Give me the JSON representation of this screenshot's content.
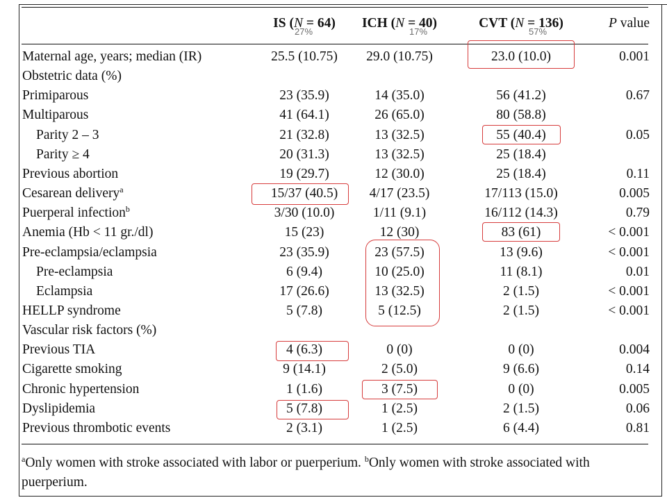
{
  "headers": {
    "col_is": {
      "name": "IS (",
      "n_label": "N",
      "n_value": " = 64)"
    },
    "col_ich": {
      "name": "ICH (",
      "n_label": "N",
      "n_value": " = 40)"
    },
    "col_cvt": {
      "name": "CVT (",
      "n_label": "N",
      "n_value": " = 136)"
    },
    "col_p": {
      "name": "P",
      "rest": " value"
    }
  },
  "percent_overlays": {
    "is": "27%",
    "ich": "17%",
    "cvt": "57%"
  },
  "rows": [
    {
      "label": "Maternal age, years; median (IR)",
      "sup": "",
      "is": "25.5 (10.75)",
      "ich": "29.0 (10.75)",
      "cvt": "23.0 (10.0)",
      "p": "0.001"
    },
    {
      "label": "Obstetric data (%)",
      "sup": "",
      "is": "",
      "ich": "",
      "cvt": "",
      "p": ""
    },
    {
      "label": "Primiparous",
      "sup": "",
      "is": "23 (35.9)",
      "ich": "14 (35.0)",
      "cvt": "56 (41.2)",
      "p": "0.67"
    },
    {
      "label": "Multiparous",
      "sup": "",
      "is": "41 (64.1)",
      "ich": "26 (65.0)",
      "cvt": "80 (58.8)",
      "p": ""
    },
    {
      "label": "Parity 2 – 3",
      "sup": "",
      "is": "21 (32.8)",
      "ich": "13 (32.5)",
      "cvt": "55 (40.4)",
      "p": "0.05"
    },
    {
      "label": "Parity ≥ 4",
      "sup": "",
      "is": "20 (31.3)",
      "ich": "13 (32.5)",
      "cvt": "25 (18.4)",
      "p": ""
    },
    {
      "label": "Previous abortion",
      "sup": "",
      "is": "19 (29.7)",
      "ich": "12 (30.0)",
      "cvt": "25 (18.4)",
      "p": "0.11"
    },
    {
      "label": "Cesarean delivery",
      "sup": "a",
      "is": "15/37 (40.5)",
      "ich": "4/17 (23.5)",
      "cvt": "17/113 (15.0)",
      "p": "0.005"
    },
    {
      "label": "Puerperal infection",
      "sup": "b",
      "is": "3/30 (10.0)",
      "ich": "1/11 (9.1)",
      "cvt": "16/112 (14.3)",
      "p": "0.79"
    },
    {
      "label": "Anemia (Hb < 11 gr./dl)",
      "sup": "",
      "is": "15 (23)",
      "ich": "12 (30)",
      "cvt": "83 (61)",
      "p": "< 0.001"
    },
    {
      "label": "Pre-eclampsia/eclampsia",
      "sup": "",
      "is": "23 (35.9)",
      "ich": "23 (57.5)",
      "cvt": "13 (9.6)",
      "p": "< 0.001"
    },
    {
      "label": "Pre-eclampsia",
      "sup": "",
      "is": "6 (9.4)",
      "ich": "10 (25.0)",
      "cvt": "11 (8.1)",
      "p": "0.01"
    },
    {
      "label": "Eclampsia",
      "sup": "",
      "is": "17 (26.6)",
      "ich": "13 (32.5)",
      "cvt": "2 (1.5)",
      "p": "< 0.001"
    },
    {
      "label": "HELLP syndrome",
      "sup": "",
      "is": "5 (7.8)",
      "ich": "5 (12.5)",
      "cvt": "2 (1.5)",
      "p": "< 0.001"
    },
    {
      "label": "Vascular risk factors (%)",
      "sup": "",
      "is": "",
      "ich": "",
      "cvt": "",
      "p": ""
    },
    {
      "label": "Previous TIA",
      "sup": "",
      "is": "4 (6.3)",
      "ich": "0 (0)",
      "cvt": "0 (0)",
      "p": "0.004"
    },
    {
      "label": "Cigarette smoking",
      "sup": "",
      "is": "9 (14.1)",
      "ich": "2 (5.0)",
      "cvt": "9 (6.6)",
      "p": "0.14"
    },
    {
      "label": "Chronic hypertension",
      "sup": "",
      "is": "1 (1.6)",
      "ich": "3 (7.5)",
      "cvt": "0 (0)",
      "p": "0.005"
    },
    {
      "label": "Dyslipidemia",
      "sup": "",
      "is": "5 (7.8)",
      "ich": "1 (2.5)",
      "cvt": "2 (1.5)",
      "p": "0.06"
    },
    {
      "label": "Previous thrombotic events",
      "sup": "",
      "is": "2 (3.1)",
      "ich": "1 (2.5)",
      "cvt": "6 (4.4)",
      "p": "0.81"
    }
  ],
  "footnote": {
    "a_mark": "a",
    "a_text": "Only women with stroke associated with labor or puerperium. ",
    "b_mark": "b",
    "b_text": "Only women with stroke associated with puerperium."
  },
  "highlight_color": "#d63b3b"
}
